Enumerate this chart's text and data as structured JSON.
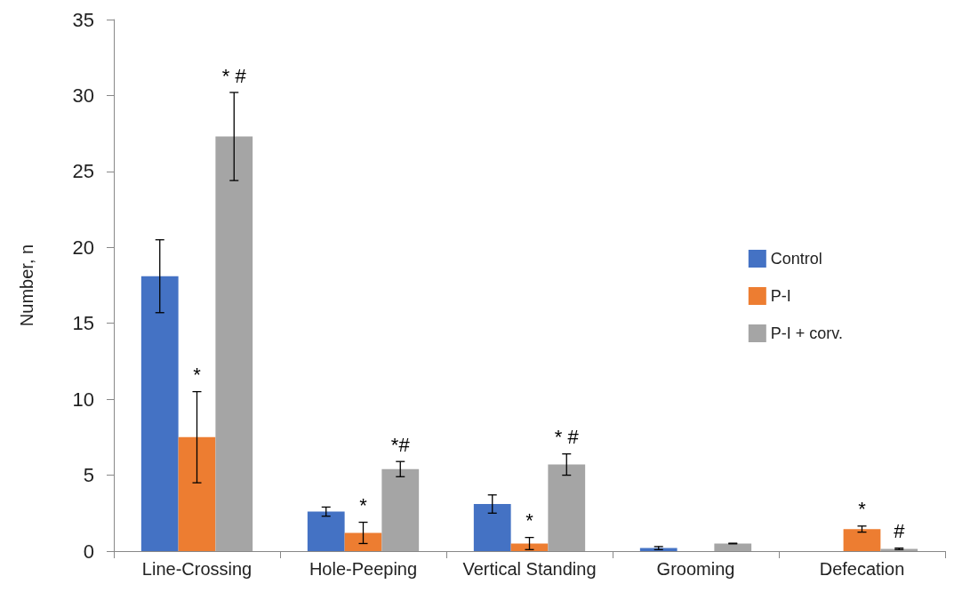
{
  "chart_data": {
    "type": "bar",
    "ylabel": "Number, n",
    "categories": [
      "Line-Crossing",
      "Hole-Peeping",
      "Vertical Standing",
      "Grooming",
      "Defecation"
    ],
    "series": [
      {
        "name": "Control",
        "color": "#4472c4",
        "values": [
          18.1,
          2.6,
          3.1,
          0.2,
          0
        ],
        "errors": [
          2.4,
          0.3,
          0.6,
          0.1,
          null
        ]
      },
      {
        "name": "P-I",
        "color": "#ed7d31",
        "values": [
          7.5,
          1.2,
          0.5,
          0,
          1.45
        ],
        "errors": [
          3.0,
          0.7,
          0.4,
          null,
          0.2
        ],
        "value_labels": [
          "*",
          "*",
          "*",
          null,
          "*"
        ]
      },
      {
        "name": "P-I + corv.",
        "color": "#a5a5a5",
        "values": [
          27.3,
          5.4,
          5.7,
          0.5,
          0.15
        ],
        "errors": [
          2.9,
          0.5,
          0.7,
          0.02,
          0.05
        ],
        "value_labels": [
          "* #",
          "*#",
          "* #",
          null,
          "#"
        ]
      }
    ],
    "ylim": [
      0,
      35
    ],
    "yticks": [
      0,
      5,
      10,
      15,
      20,
      25,
      30,
      35
    ],
    "grid": false,
    "legend": "right"
  }
}
